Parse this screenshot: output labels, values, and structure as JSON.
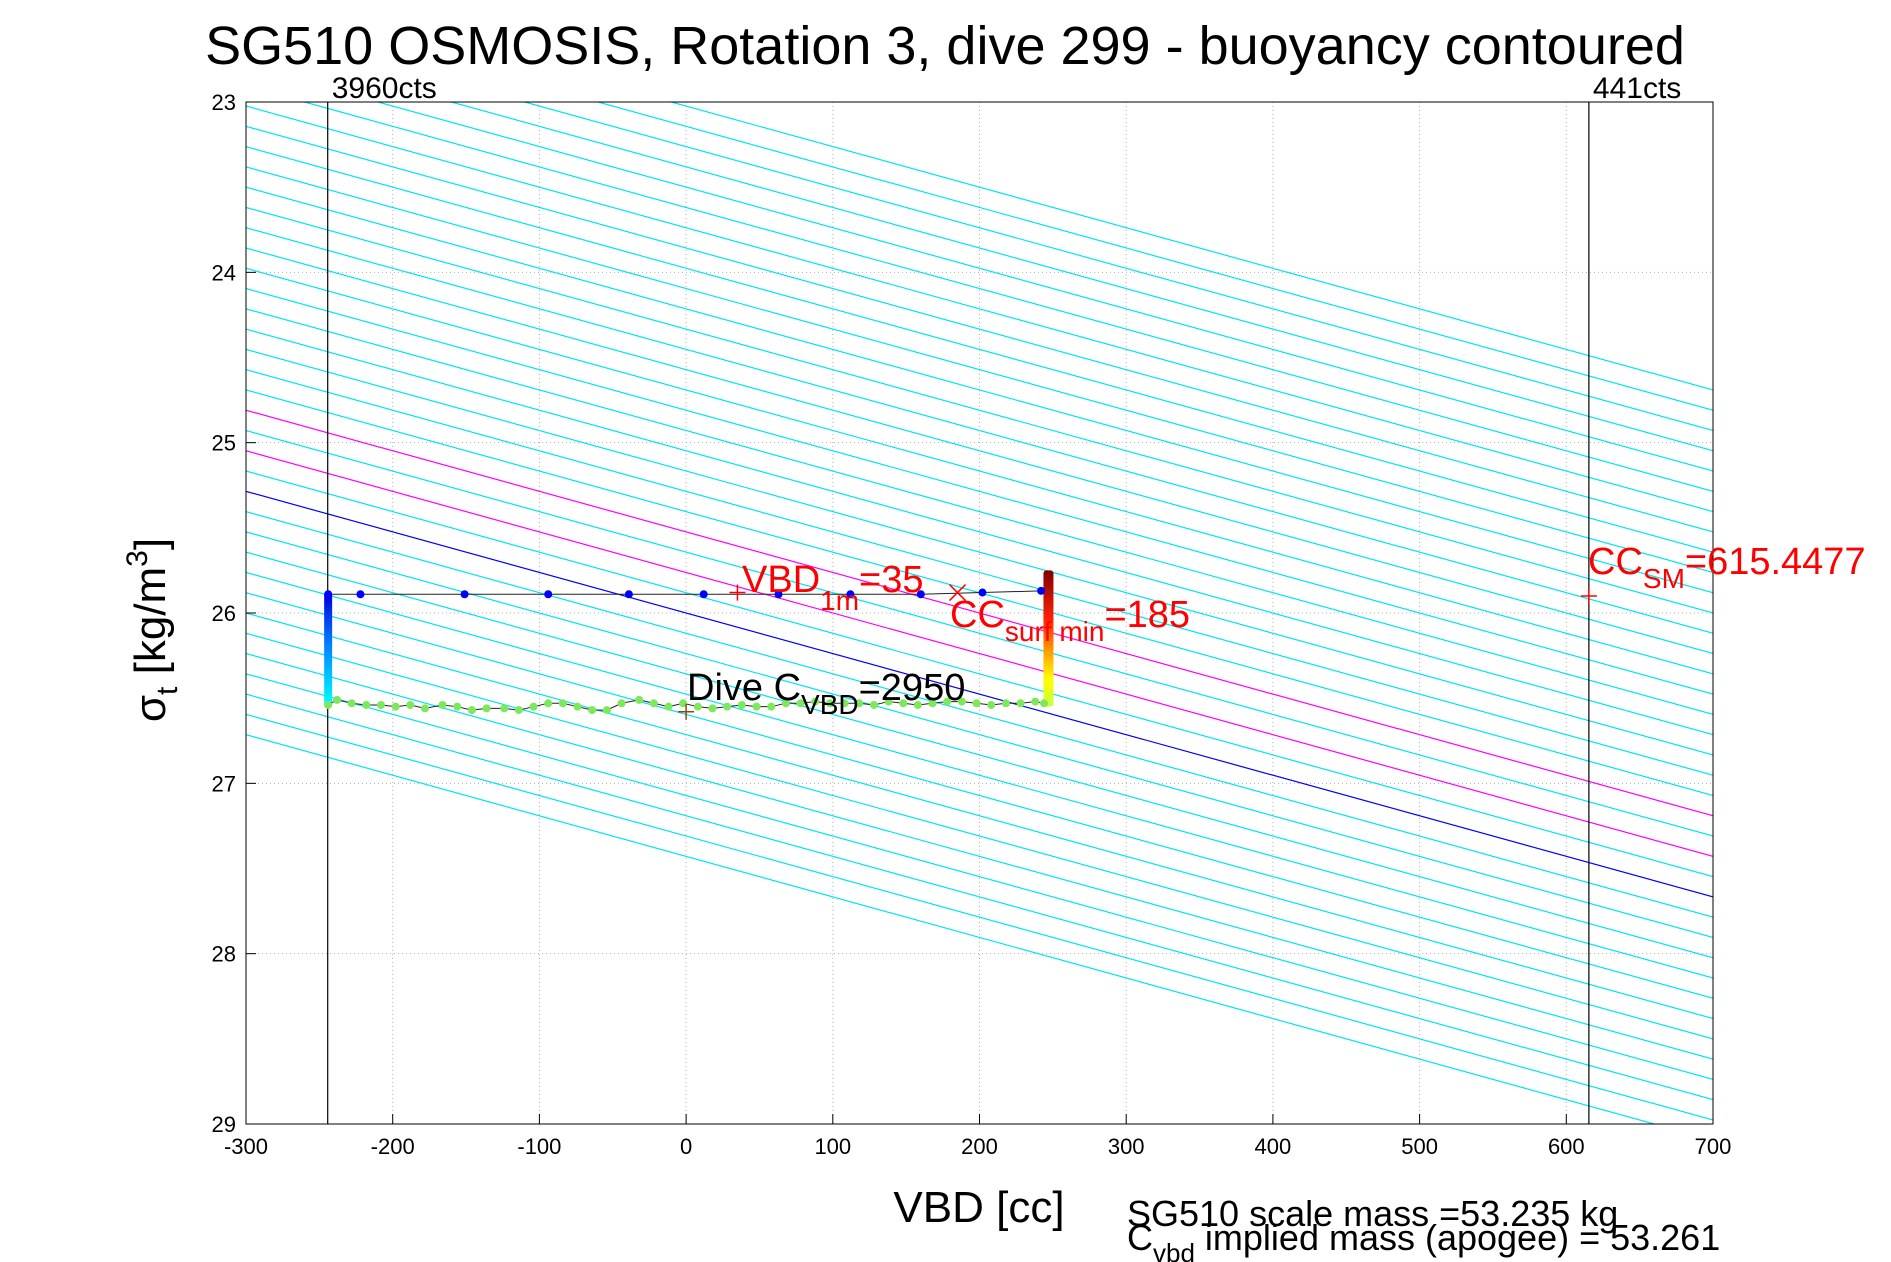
{
  "chart_data": {
    "type": "line",
    "title": "SG510 OSMOSIS, Rotation 3, dive 299 - buoyancy contoured",
    "xlabel": "VBD [cc]",
    "ylabel_main": "σ",
    "ylabel_sub": "t",
    "ylabel_unit": " [kg/m",
    "ylabel_sup": "3",
    "ylabel_close": "]",
    "xlim": [
      -300,
      700
    ],
    "ylim": [
      23,
      29
    ],
    "y_reversed": true,
    "grid": true,
    "xticks": [
      -300,
      -200,
      -100,
      0,
      100,
      200,
      300,
      400,
      500,
      600,
      700
    ],
    "yticks": [
      23,
      24,
      25,
      26,
      27,
      28,
      29
    ],
    "vlines": [
      {
        "x": -244.3,
        "label": "3960cts"
      },
      {
        "x": 615.4,
        "label": "441cts"
      }
    ],
    "contour_slope_cc_per_sigma": 420,
    "contours_top": [
      -400,
      -350,
      -300,
      -250,
      -200,
      -150,
      -100,
      -50,
      0,
      50,
      100,
      150,
      200,
      250,
      300,
      350,
      400,
      450,
      500
    ],
    "contours_bottom": [
      -150,
      -100,
      -50,
      0,
      50,
      100,
      150,
      200,
      250,
      300,
      350,
      400,
      450,
      500
    ],
    "contour_colors": {
      "default": "#00e5ee",
      "zero": "#0000ff",
      "highlight": "#ff00ff"
    },
    "highlight_contours": [
      100,
      200
    ],
    "dive_series": {
      "name": "descent",
      "color": "#0000ff",
      "x": [
        -244,
        -222,
        -151,
        -94,
        -39,
        12,
        63,
        112,
        160,
        202,
        242
      ],
      "y": [
        25.89,
        25.89,
        25.89,
        25.89,
        25.89,
        25.89,
        25.89,
        25.89,
        25.89,
        25.88,
        25.87
      ]
    },
    "climb_series": {
      "name": "climb",
      "color": "#7ee85c",
      "x": [
        -244,
        -238,
        -228,
        -218,
        -208,
        -198,
        -188,
        -178,
        -166,
        -156,
        -146,
        -136,
        -124,
        -114,
        -104,
        -94,
        -84,
        -74,
        -64,
        -54,
        -44,
        -32,
        -22,
        -12,
        -2,
        8,
        18,
        28,
        38,
        48,
        58,
        68,
        78,
        88,
        98,
        108,
        118,
        128,
        138,
        148,
        158,
        168,
        178,
        188,
        198,
        208,
        218,
        228,
        238,
        244
      ],
      "y": [
        26.54,
        26.51,
        26.53,
        26.54,
        26.54,
        26.55,
        26.54,
        26.56,
        26.54,
        26.55,
        26.57,
        26.56,
        26.56,
        26.57,
        26.55,
        26.53,
        26.53,
        26.55,
        26.57,
        26.57,
        26.53,
        26.51,
        26.53,
        26.55,
        26.53,
        26.55,
        26.56,
        26.55,
        26.54,
        26.55,
        26.55,
        26.53,
        26.53,
        26.52,
        26.53,
        26.53,
        26.53,
        26.54,
        26.52,
        26.53,
        26.54,
        26.53,
        26.52,
        26.52,
        26.53,
        26.54,
        26.53,
        26.53,
        26.52,
        26.53
      ]
    },
    "left_descent_x": -244,
    "left_descent_y": [
      25.89,
      26.54
    ],
    "right_bar_x": 247,
    "right_bar_y": [
      25.75,
      26.55
    ],
    "markers": [
      {
        "x": 35,
        "y": 25.88,
        "sym": "+",
        "color": "#ff0000"
      },
      {
        "x": 185,
        "y": 25.88,
        "sym": "x",
        "color": "#ff0000"
      },
      {
        "x": 0,
        "y": 26.58,
        "sym": "+",
        "color": "#8b4513"
      },
      {
        "x": 615.4,
        "y": 25.9,
        "sym": "+",
        "color": "#ff0000"
      }
    ],
    "annotations": {
      "vbd1m_main": "VBD",
      "vbd1m_sub": "1m",
      "vbd1m_val": "=35",
      "ccsurf_main": "CC",
      "ccsurf_sub": "surf min",
      "ccsurf_val": "=185",
      "divec_main": "Dive C",
      "divec_sub": "VBD",
      "divec_val": "=2950",
      "ccsm_main": "CC",
      "ccsm_sub": "SM",
      "ccsm_val": "=615.4477"
    },
    "footer": {
      "scale_mass": "SG510 scale mass =53.235 kg",
      "implied_main": "C",
      "implied_sub": "vbd",
      "implied_rest": " implied mass (apogee) = 53.261"
    }
  }
}
